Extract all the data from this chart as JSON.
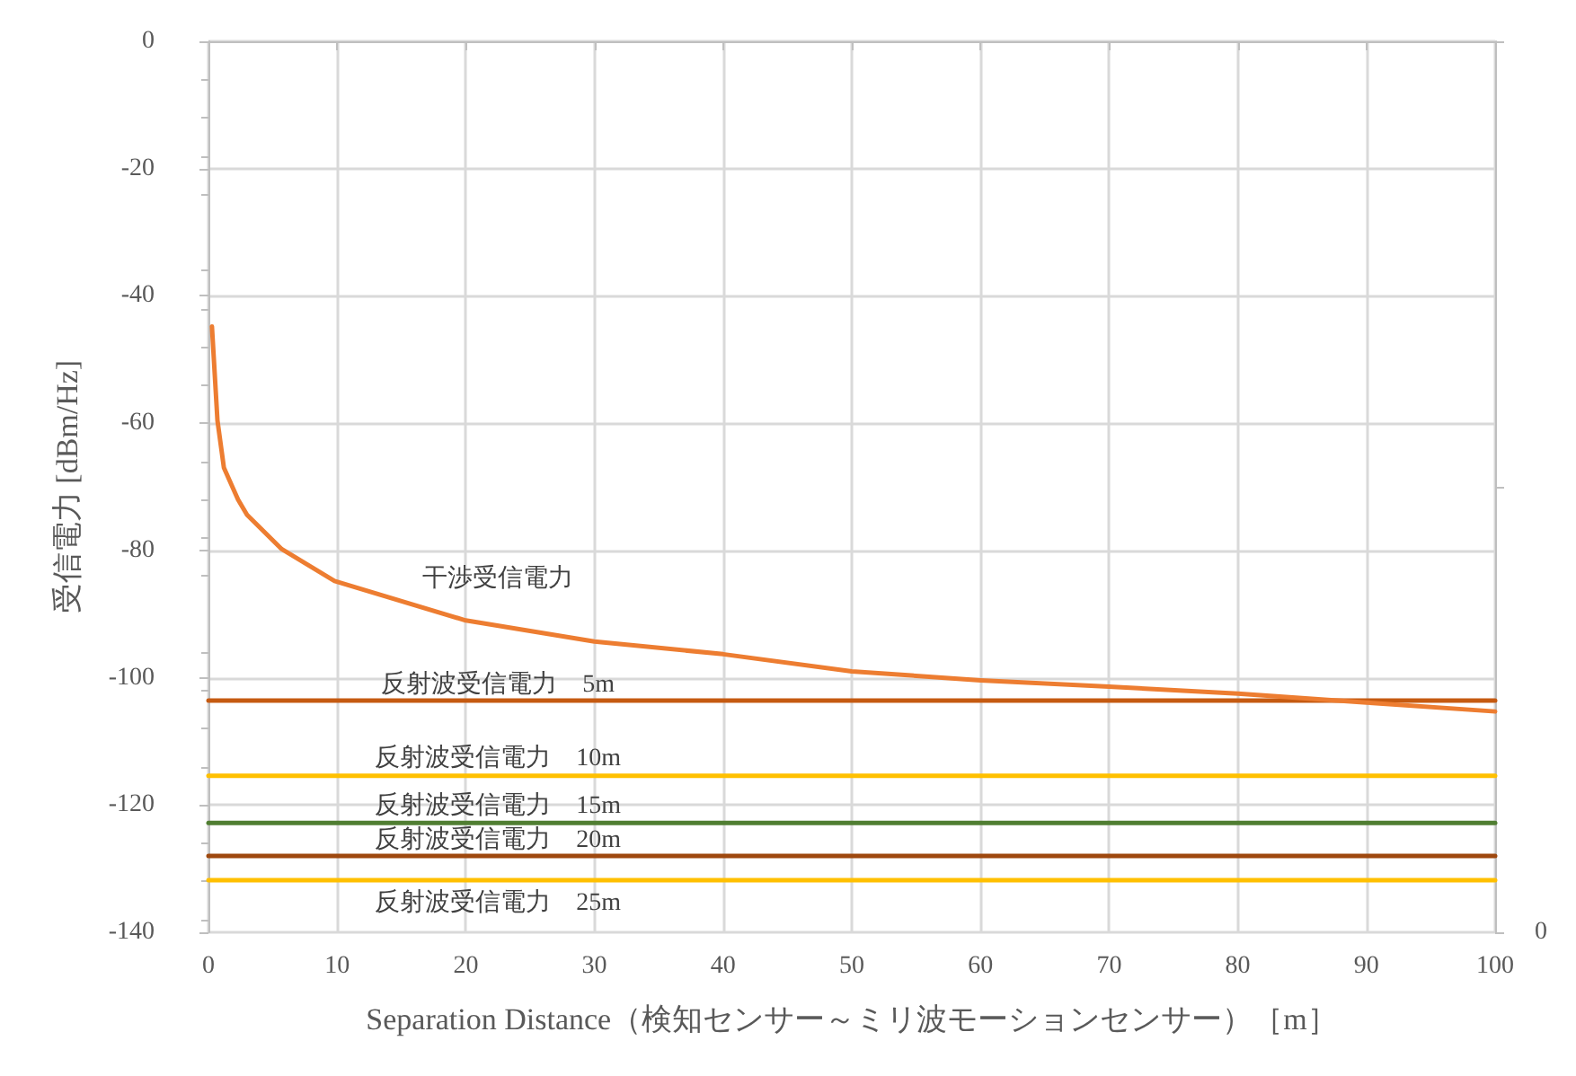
{
  "chart_data": {
    "type": "line",
    "xlabel": "Separation Distance（検知センサー～ミリ波モーションセンサー）［m］",
    "ylabel": "受信電力 [dBm/Hz]",
    "xlim": [
      0,
      100
    ],
    "xticks": [
      0,
      10,
      20,
      30,
      40,
      50,
      60,
      70,
      80,
      90,
      100
    ],
    "ylim": [
      -140,
      0
    ],
    "yticks": [
      -140,
      -120,
      -100,
      -80,
      -60,
      -40,
      -20,
      0
    ],
    "grid": true,
    "marker": "none",
    "line_style": "solid",
    "series": [
      {
        "name": "干渉受信電力",
        "color": "#ed7d31",
        "x": [
          0.27,
          0.7,
          1.2,
          2.3,
          3,
          5.7,
          9.8,
          20,
          30,
          40,
          50,
          60,
          70,
          80,
          90,
          100
        ],
        "values": [
          -44.8,
          -59.6,
          -67,
          -72,
          -74.4,
          -79.8,
          -84.8,
          -91,
          -94.3,
          -96.3,
          -99,
          -100.4,
          -101.4,
          -102.5,
          -103.9,
          -105.3
        ]
      },
      {
        "name": "反射波受信電力　5m",
        "color": "#c55a11",
        "x": [
          0,
          100
        ],
        "values": [
          -103.6,
          -103.6
        ]
      },
      {
        "name": "反射波受信電力　10m",
        "color": "#ffc000",
        "x": [
          0,
          100
        ],
        "values": [
          -115.4,
          -115.4
        ]
      },
      {
        "name": "反射波受信電力　15m",
        "color": "#507e32",
        "x": [
          0,
          100
        ],
        "values": [
          -122.8,
          -122.8
        ]
      },
      {
        "name": "反射波受信電力　20m",
        "color": "#9e480e",
        "x": [
          0,
          100
        ],
        "values": [
          -128,
          -128
        ]
      },
      {
        "name": "反射波受信電力　25m",
        "color": "#ffc000",
        "x": [
          0,
          100
        ],
        "values": [
          -131.8,
          -131.8
        ]
      }
    ],
    "annotations": [
      "0"
    ]
  }
}
